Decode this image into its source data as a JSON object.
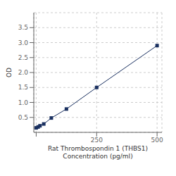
{
  "chart_data": {
    "type": "line",
    "xlabel": "Rat Thrombospondin 1 (THBS1)\nConcentration (pg/ml)",
    "ylabel": "OD",
    "x": [
      0,
      7.8,
      15.6,
      31.25,
      62.5,
      125,
      250,
      500
    ],
    "values": [
      0.15,
      0.18,
      0.22,
      0.28,
      0.48,
      0.78,
      1.5,
      2.9
    ],
    "color": "#1a3060",
    "marker": "square",
    "line_style": "solid",
    "xlim": [
      -10,
      520
    ],
    "ylim": [
      0,
      4.0
    ],
    "xticks": [
      {
        "value": 0,
        "label": ""
      },
      250,
      500
    ],
    "yticks": [
      0.5,
      {
        "value": 1.0,
        "label": "1.0"
      },
      1.5,
      {
        "value": 2.0,
        "label": "2.0"
      },
      2.5,
      {
        "value": 3.0,
        "label": "3.0"
      },
      3.5
    ],
    "grid": true
  }
}
